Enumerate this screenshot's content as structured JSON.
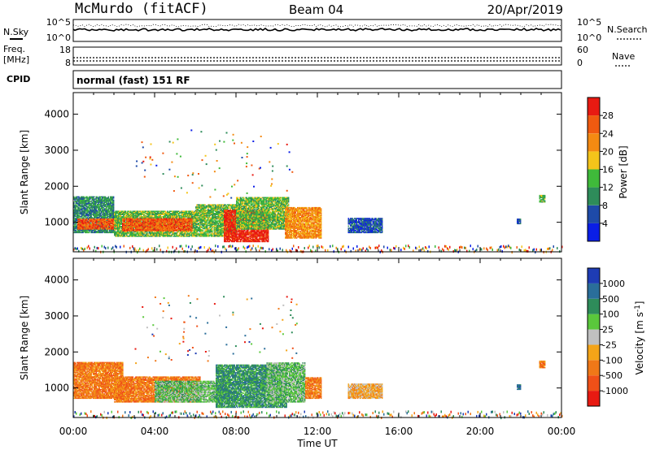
{
  "header": {
    "station": "McMurdo (fitACF)",
    "beam": "Beam 04",
    "date": "20/Apr/2019"
  },
  "side_labels": {
    "nsky": "N.Sky",
    "freq": "Freq.",
    "mhz": "[MHz]",
    "cpid": "CPID",
    "nsearch": "N.Search",
    "nave": "Nave"
  },
  "noise_panel": {
    "left_top": "10^5",
    "left_bottom": "10^0",
    "right_top": "10^5",
    "right_bottom": "10^0"
  },
  "freq_panel": {
    "left_top": "18",
    "left_bottom": "8",
    "right_top": "60",
    "right_bottom": "0"
  },
  "cpid_text": "normal (fast) 151 RF",
  "power_colorbar": {
    "label": "Power [dB]",
    "ticks": [
      "4",
      "8",
      "12",
      "16",
      "20",
      "24",
      "28"
    ],
    "colors": [
      "#0a1ee6",
      "#1e4aa8",
      "#2e8c5a",
      "#3fba3a",
      "#f4c41a",
      "#f48a12",
      "#f05a10",
      "#e81a12"
    ]
  },
  "velocity_colorbar": {
    "label": "Velocity [m s",
    "label_sup": "-1",
    "label_end": "]",
    "ticks": [
      "1000",
      "500",
      "100",
      "25",
      "-25",
      "-100",
      "-500",
      "-1000"
    ],
    "colors": [
      "#1e3cb4",
      "#2a6e9a",
      "#2e8c5a",
      "#5ac83c",
      "#c0c0c0",
      "#f4a418",
      "#f07818",
      "#f05018",
      "#e81a12"
    ]
  },
  "chart_data": [
    {
      "type": "heatmap",
      "panel": "power",
      "ylabel": "Slant Range [km]",
      "ylim": [
        180,
        4600
      ],
      "yticks": [
        1000,
        2000,
        3000,
        4000
      ],
      "xlim": [
        0,
        24
      ],
      "xticks": [
        "00:00",
        "04:00",
        "08:00",
        "12:00",
        "16:00",
        "20:00",
        "00:00"
      ],
      "echo_blobs": [
        {
          "t0": 0.0,
          "t1": 2.0,
          "r0": 700,
          "r1": 1700,
          "level": 2
        },
        {
          "t0": 0.2,
          "t1": 2.2,
          "r0": 800,
          "r1": 1100,
          "level": 6
        },
        {
          "t0": 2.0,
          "t1": 6.0,
          "r0": 600,
          "r1": 1300,
          "level": 3
        },
        {
          "t0": 2.4,
          "t1": 5.8,
          "r0": 750,
          "r1": 1100,
          "level": 6
        },
        {
          "t0": 6.0,
          "t1": 8.0,
          "r0": 600,
          "r1": 1500,
          "level": 3
        },
        {
          "t0": 7.4,
          "t1": 9.6,
          "r0": 450,
          "r1": 1350,
          "level": 7
        },
        {
          "t0": 8.0,
          "t1": 10.6,
          "r0": 800,
          "r1": 1700,
          "level": 3
        },
        {
          "t0": 10.4,
          "t1": 12.2,
          "r0": 550,
          "r1": 1400,
          "level": 5
        },
        {
          "t0": 13.5,
          "t1": 15.2,
          "r0": 700,
          "r1": 1100,
          "level": 1
        },
        {
          "t0": 22.9,
          "t1": 23.2,
          "r0": 1550,
          "r1": 1750,
          "level": 3
        },
        {
          "t0": 21.8,
          "t1": 22.0,
          "r0": 950,
          "r1": 1100,
          "level": 1
        }
      ]
    },
    {
      "type": "heatmap",
      "panel": "velocity",
      "ylabel": "Slant Range [km]",
      "xlabel": "Time UT",
      "ylim": [
        180,
        4600
      ],
      "yticks": [
        1000,
        2000,
        3000,
        4000
      ],
      "xlim": [
        0,
        24
      ],
      "xticks": [
        "00:00",
        "04:00",
        "08:00",
        "12:00",
        "16:00",
        "20:00",
        "00:00"
      ],
      "echo_blobs": [
        {
          "t0": 0.0,
          "t1": 2.4,
          "r0": 700,
          "r1": 1700,
          "level": 6
        },
        {
          "t0": 2.0,
          "t1": 6.2,
          "r0": 600,
          "r1": 1300,
          "level": 6
        },
        {
          "t0": 4.0,
          "t1": 7.5,
          "r0": 600,
          "r1": 1200,
          "level": 3
        },
        {
          "t0": 7.0,
          "t1": 10.5,
          "r0": 450,
          "r1": 1650,
          "level": 2
        },
        {
          "t0": 9.5,
          "t1": 11.4,
          "r0": 600,
          "r1": 1700,
          "level": 3
        },
        {
          "t0": 11.4,
          "t1": 12.2,
          "r0": 700,
          "r1": 1300,
          "level": 6
        },
        {
          "t0": 13.5,
          "t1": 15.2,
          "r0": 700,
          "r1": 1100,
          "level": 5
        },
        {
          "t0": 22.9,
          "t1": 23.2,
          "r0": 1550,
          "r1": 1750,
          "level": 6
        },
        {
          "t0": 21.8,
          "t1": 22.0,
          "r0": 950,
          "r1": 1100,
          "level": 1
        }
      ]
    }
  ]
}
